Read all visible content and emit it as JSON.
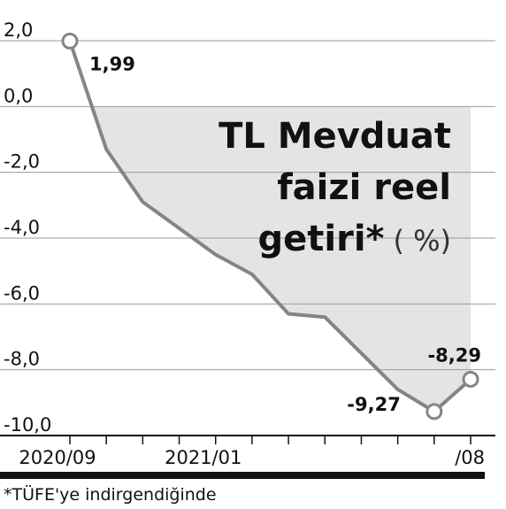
{
  "chart_data": {
    "type": "line",
    "title_lines": [
      "TL Mevduat",
      "faizi reel",
      "getiri*"
    ],
    "unit": "( %)",
    "footnote": "*TÜFE'ye indirgendiğinde",
    "categories": [
      "2020/09",
      null,
      null,
      null,
      "2021/01",
      null,
      null,
      null,
      null,
      null,
      null,
      "/08"
    ],
    "values": [
      1.99,
      -1.3,
      -2.9,
      -3.7,
      -4.5,
      -5.1,
      -6.3,
      -6.4,
      -7.5,
      -8.6,
      -9.27,
      -8.29
    ],
    "value_labels": [
      "1,99",
      null,
      null,
      null,
      null,
      null,
      null,
      null,
      null,
      null,
      "-9,27",
      "-8,29"
    ],
    "color": "#858585",
    "area_color": "#e4e4e4",
    "ylim": [
      -10,
      2
    ],
    "yticks": [
      {
        "value": -10,
        "label": "-10,0"
      },
      {
        "value": -8,
        "label": "-8,0"
      },
      {
        "value": -6,
        "label": "-6,0"
      },
      {
        "value": -4,
        "label": "-4,0"
      },
      {
        "value": -2,
        "label": "-2,0"
      },
      {
        "value": 0,
        "label": "0,0"
      },
      {
        "value": 2,
        "label": "2,0"
      }
    ],
    "grid": true
  }
}
